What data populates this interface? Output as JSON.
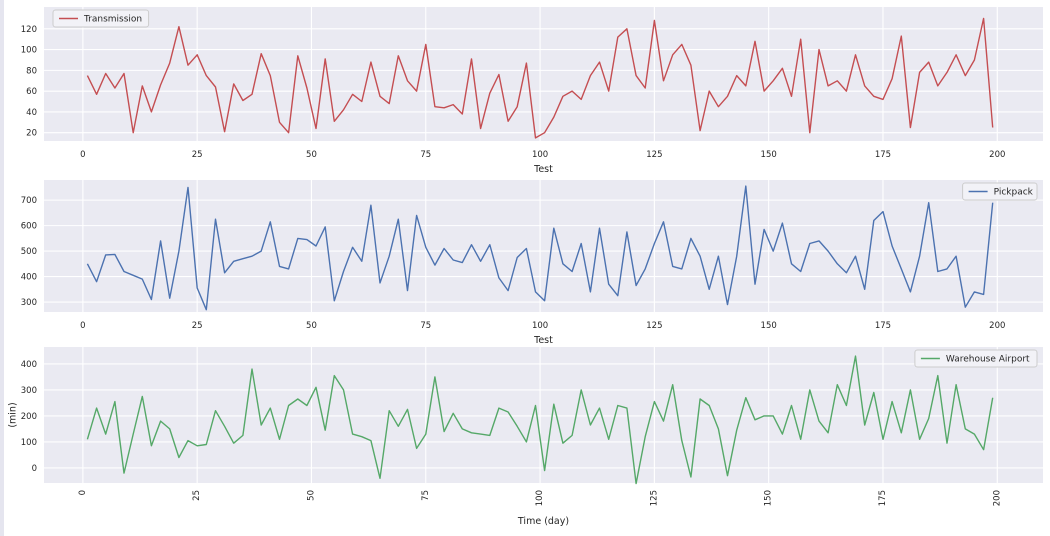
{
  "figure": {
    "background": "#ffffff",
    "plot_background": "#eaeaf2",
    "grid_color": "#ffffff",
    "text_color": "#262626",
    "legend_background": "#f2f2f7",
    "legend_border": "#cccccc"
  },
  "chart_data": [
    {
      "type": "line",
      "series_name": "Transmission",
      "color": "#c44e52",
      "legend_position": "top-left",
      "xlabel": "Test",
      "ylabel": "",
      "xticks": [
        0,
        25,
        50,
        75,
        100,
        125,
        150,
        175,
        200
      ],
      "yticks": [
        20,
        40,
        60,
        80,
        100,
        120
      ],
      "xlim": [
        -8.5,
        210
      ],
      "ylim": [
        12,
        141
      ],
      "xtick_rotation": 0,
      "grid": true,
      "x_start": 1,
      "x_step": 2,
      "values": [
        75,
        57,
        77,
        63,
        77,
        20,
        65,
        40,
        66,
        87,
        122,
        85,
        95,
        75,
        64,
        21,
        67,
        51,
        57,
        96,
        75,
        30,
        20,
        94,
        63,
        24,
        91,
        31,
        42,
        57,
        50,
        88,
        55,
        48,
        94,
        70,
        60,
        105,
        45,
        44,
        47,
        38,
        91,
        24,
        58,
        76,
        31,
        45,
        87,
        15,
        20,
        35,
        55,
        60,
        52,
        75,
        88,
        60,
        112,
        120,
        75,
        63,
        128,
        70,
        95,
        105,
        85,
        22,
        60,
        45,
        55,
        75,
        65,
        108,
        60,
        70,
        82,
        55,
        110,
        20,
        100,
        65,
        70,
        60,
        95,
        65,
        55,
        52,
        72,
        113,
        25,
        78,
        88,
        65,
        78,
        95,
        75,
        90,
        130,
        25
      ]
    },
    {
      "type": "line",
      "series_name": "Pickpack",
      "color": "#4c72b0",
      "legend_position": "top-right",
      "xlabel": "Test",
      "ylabel": "",
      "xticks": [
        0,
        25,
        50,
        75,
        100,
        125,
        150,
        175,
        200
      ],
      "yticks": [
        300,
        400,
        500,
        600,
        700
      ],
      "xlim": [
        -8.5,
        210
      ],
      "ylim": [
        261,
        779
      ],
      "xtick_rotation": 0,
      "grid": true,
      "x_start": 1,
      "x_step": 2,
      "values": [
        450,
        380,
        485,
        487,
        420,
        405,
        390,
        310,
        540,
        315,
        500,
        750,
        355,
        270,
        625,
        415,
        460,
        470,
        480,
        500,
        615,
        440,
        430,
        550,
        545,
        520,
        595,
        305,
        420,
        515,
        460,
        680,
        375,
        480,
        625,
        345,
        640,
        515,
        445,
        510,
        465,
        455,
        525,
        460,
        525,
        395,
        345,
        475,
        510,
        340,
        305,
        590,
        450,
        420,
        530,
        340,
        590,
        370,
        325,
        575,
        365,
        430,
        530,
        615,
        440,
        430,
        550,
        480,
        350,
        480,
        290,
        480,
        755,
        370,
        585,
        500,
        610,
        450,
        420,
        530,
        540,
        500,
        450,
        415,
        480,
        350,
        620,
        655,
        520,
        430,
        340,
        480,
        690,
        420,
        430,
        480,
        280,
        340,
        330,
        690
      ]
    },
    {
      "type": "line",
      "series_name": "Warehouse Airport",
      "color": "#55a868",
      "legend_position": "top-right",
      "xlabel": "Time (day)",
      "ylabel": "(min)",
      "xticks": [
        0,
        25,
        50,
        75,
        100,
        125,
        150,
        175,
        200
      ],
      "yticks": [
        0,
        100,
        200,
        300,
        400
      ],
      "xlim": [
        -8.5,
        210
      ],
      "ylim": [
        -58,
        465
      ],
      "xtick_rotation": 90,
      "grid": true,
      "x_start": 1,
      "x_step": 2,
      "values": [
        110,
        230,
        130,
        255,
        -20,
        130,
        275,
        85,
        180,
        150,
        40,
        105,
        85,
        90,
        220,
        160,
        95,
        125,
        380,
        165,
        230,
        110,
        240,
        265,
        240,
        310,
        145,
        355,
        300,
        130,
        120,
        105,
        -40,
        220,
        160,
        225,
        75,
        130,
        350,
        140,
        210,
        150,
        135,
        130,
        125,
        230,
        215,
        160,
        100,
        240,
        -10,
        245,
        95,
        125,
        300,
        165,
        230,
        110,
        240,
        230,
        -60,
        120,
        255,
        180,
        320,
        105,
        -35,
        265,
        240,
        150,
        -30,
        145,
        270,
        185,
        200,
        200,
        130,
        240,
        110,
        300,
        180,
        135,
        320,
        240,
        430,
        165,
        290,
        110,
        255,
        135,
        300,
        110,
        190,
        355,
        95,
        320,
        150,
        130,
        70,
        270
      ]
    }
  ]
}
